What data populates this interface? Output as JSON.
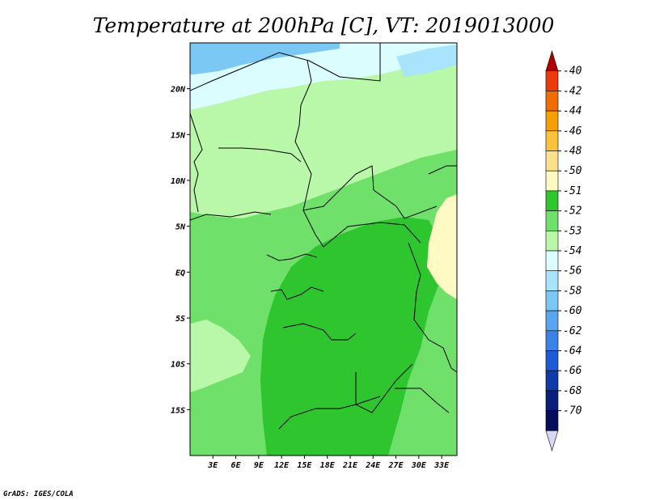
{
  "title": "Temperature at 200hPa [C], VT: 2019013000",
  "credit": "GrADS: IGES/COLA",
  "map": {
    "lon_range": [
      0,
      35
    ],
    "lat_range": [
      -20,
      25
    ],
    "x_ticks": [
      "3E",
      "6E",
      "9E",
      "12E",
      "15E",
      "18E",
      "21E",
      "24E",
      "27E",
      "30E",
      "33E"
    ],
    "x_tick_values": [
      3,
      6,
      9,
      12,
      15,
      18,
      21,
      24,
      27,
      30,
      33
    ],
    "y_ticks": [
      "20N",
      "15N",
      "10N",
      "5N",
      "EQ",
      "5S",
      "10S",
      "15S"
    ],
    "y_tick_values": [
      20,
      15,
      10,
      5,
      0,
      -5,
      -10,
      -15
    ]
  },
  "colorbar": {
    "labels": [
      "-40",
      "-42",
      "-44",
      "-46",
      "-48",
      "-50",
      "-51",
      "-52",
      "-53",
      "-54",
      "-56",
      "-58",
      "-60",
      "-62",
      "-64",
      "-66",
      "-68",
      "-70"
    ],
    "colors": [
      "#b40000",
      "#ec3a0b",
      "#f16d00",
      "#f6a000",
      "#fbc23b",
      "#fde08c",
      "#fff9c4",
      "#2ec52f",
      "#6fe06a",
      "#b9f7a9",
      "#dcfdfd",
      "#a8e4fb",
      "#7bc8f5",
      "#5aa6ee",
      "#3a82e6",
      "#1c5ad6",
      "#0f3aa8",
      "#0a1f7a",
      "#060d5a",
      "#d8d8f5"
    ]
  },
  "field_colors": {
    "c_m51": "#fff9c4",
    "c_m52": "#2ec52f",
    "c_m53": "#6fe06a",
    "c_m54": "#b9f7a9",
    "c_m56": "#dcfdfd",
    "c_m58": "#a8e4fb",
    "c_m60": "#7bc8f5"
  }
}
